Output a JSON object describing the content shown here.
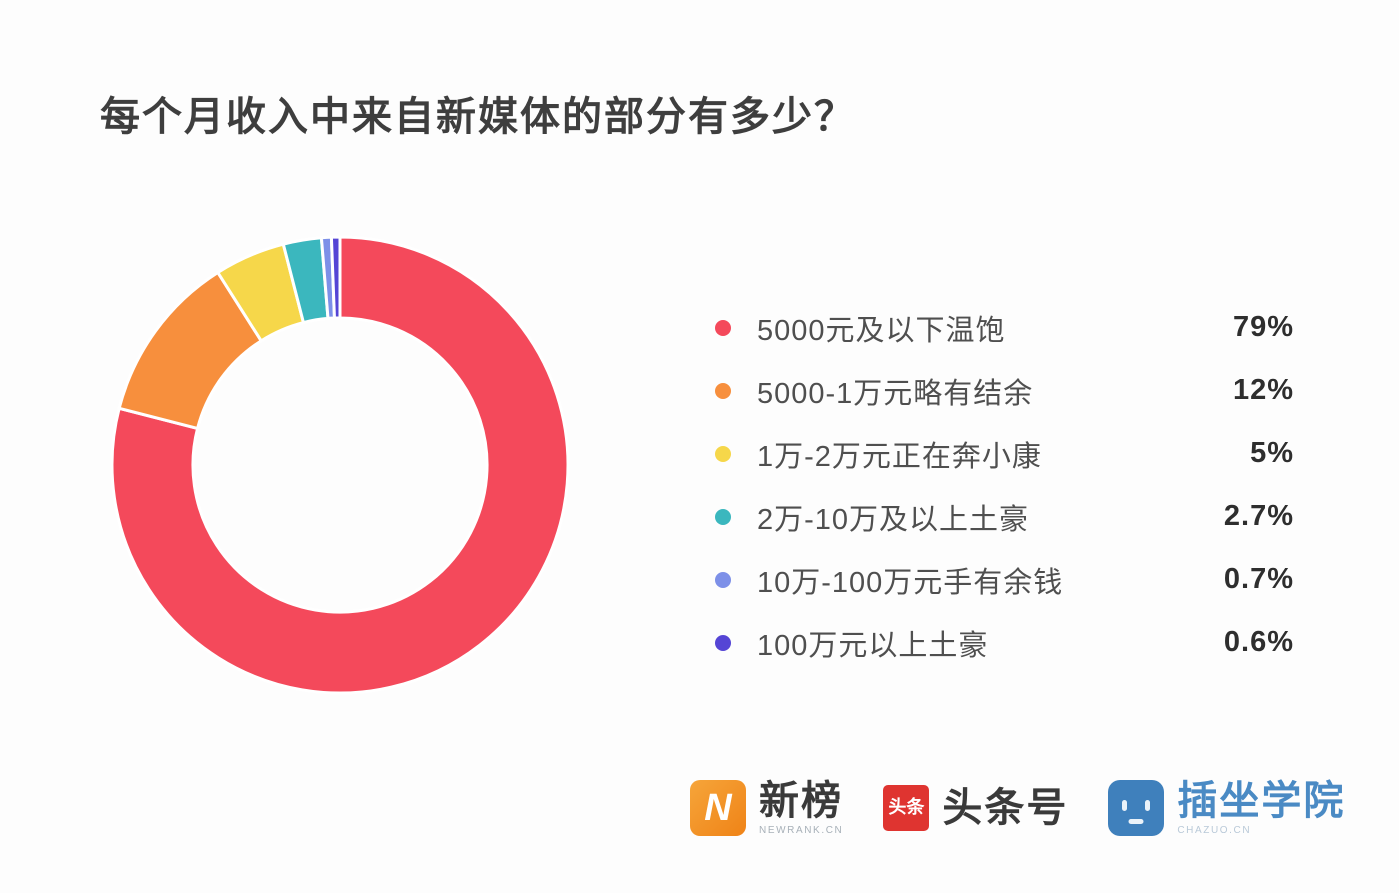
{
  "title": "每个月收入中来自新媒体的部分有多少？",
  "chart_data": {
    "type": "pie",
    "subtype": "donut",
    "title": "每个月收入中来自新媒体的部分有多少？",
    "legend_position": "right",
    "start_angle_deg": 0,
    "direction": "clockwise",
    "inner_radius_ratio": 0.645,
    "series": [
      {
        "label": "5000元及以下温饱",
        "value": 79,
        "display": "79%",
        "color": "#f4495b"
      },
      {
        "label": "5000-1万元略有结余",
        "value": 12,
        "display": "12%",
        "color": "#f78f3d"
      },
      {
        "label": "1万-2万元正在奔小康",
        "value": 5,
        "display": "5%",
        "color": "#f6d74a"
      },
      {
        "label": "2万-10万及以上土豪",
        "value": 2.7,
        "display": "2.7%",
        "color": "#3bb7be"
      },
      {
        "label": "10万-100万元手有余钱",
        "value": 0.7,
        "display": "0.7%",
        "color": "#7d90e8"
      },
      {
        "label": "100万元以上土豪",
        "value": 0.6,
        "display": "0.6%",
        "color": "#5545d5"
      }
    ]
  },
  "footer": {
    "logos": {
      "newrank": {
        "badge_letter": "N",
        "text": "新榜",
        "subtext": "NEWRANK.CN"
      },
      "toutiao": {
        "badge_text": "头条",
        "text": "头条号"
      },
      "chazuo": {
        "text": "插坐学院",
        "subtext": "CHAZUO.CN"
      }
    }
  }
}
